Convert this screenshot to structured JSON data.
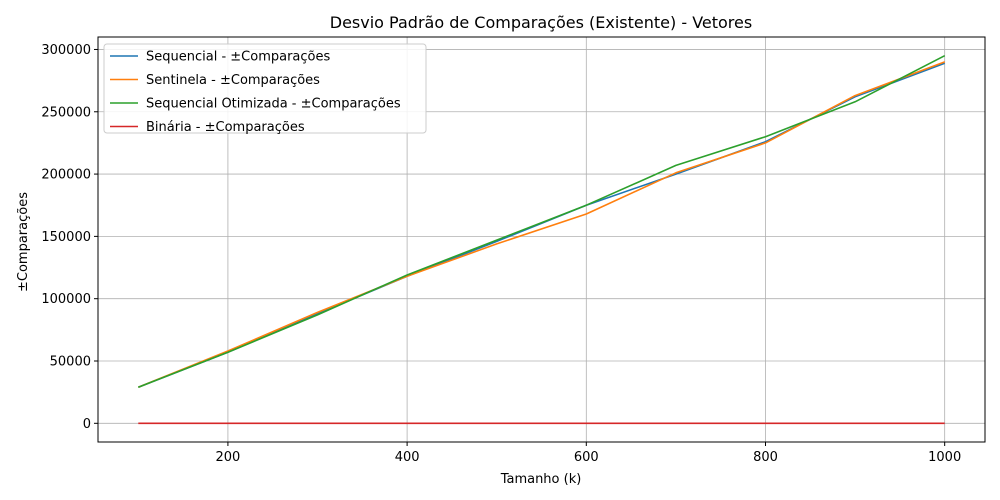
{
  "chart_data": {
    "type": "line",
    "title": "Desvio Padrão de Comparações (Existente) - Vetores",
    "xlabel": "Tamanho (k)",
    "ylabel": "±Comparações",
    "xlim": [
      55,
      1045
    ],
    "ylim": [
      -15000,
      310000
    ],
    "xticks": [
      200,
      400,
      600,
      800,
      1000
    ],
    "yticks": [
      0,
      50000,
      100000,
      150000,
      200000,
      250000,
      300000
    ],
    "grid": true,
    "legend_position": "top-left",
    "x": [
      100,
      200,
      300,
      400,
      500,
      600,
      700,
      800,
      900,
      1000
    ],
    "series": [
      {
        "name": "Sequencial - ±Comparações",
        "color": "#1f77b4",
        "values": [
          29000,
          57000,
          88000,
          118000,
          146000,
          175000,
          200000,
          226000,
          262000,
          289000
        ]
      },
      {
        "name": "Sentinela - ±Comparações",
        "color": "#ff7f0e",
        "values": [
          29000,
          58000,
          89000,
          118000,
          144000,
          168000,
          201000,
          225000,
          263000,
          290000
        ]
      },
      {
        "name": "Sequencial Otimizada - ±Comparações",
        "color": "#2ca02c",
        "values": [
          29000,
          57000,
          87000,
          119000,
          147000,
          175000,
          207000,
          230000,
          258000,
          295000
        ]
      },
      {
        "name": "Binária - ±Comparações",
        "color": "#d62728",
        "values": [
          0,
          0,
          0,
          0,
          0,
          0,
          0,
          0,
          0,
          0
        ]
      }
    ]
  }
}
